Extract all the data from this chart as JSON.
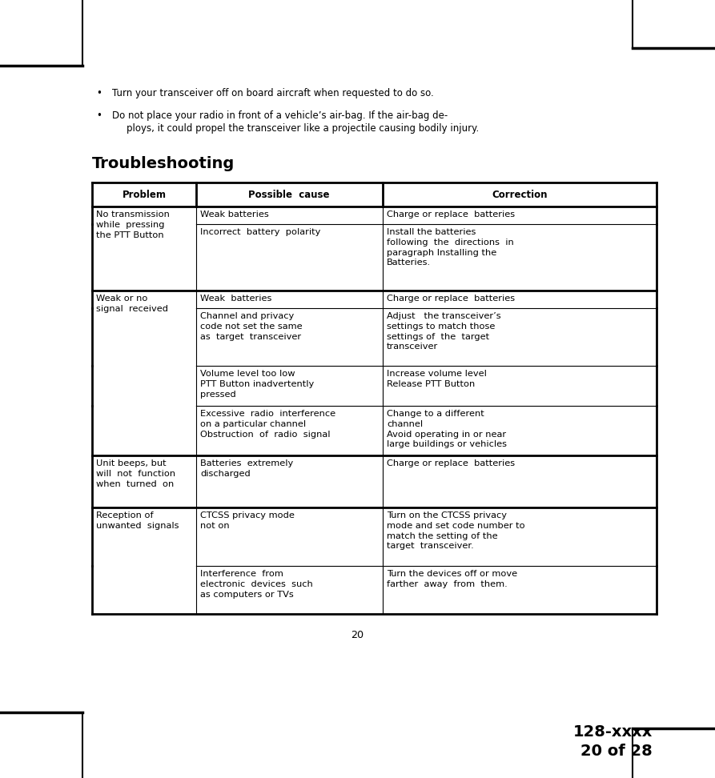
{
  "page_width": 8.93,
  "page_height": 9.72,
  "bg_color": "#ffffff",
  "bullet1": "Turn your transceiver off on board aircraft when requested to do so.",
  "bullet2a": "Do not place your radio in front of a vehicle’s air-bag. If the air-bag de-",
  "bullet2b": "ploys, it could propel the transceiver like a projectile causing bodily injury.",
  "section_title": "Troubleshooting",
  "header_row": [
    "Problem",
    "Possible  cause",
    "Correction"
  ],
  "page_number": "20",
  "footer_text": "128-xxxx\n20 of 28",
  "font_size_body": 8.2,
  "font_size_header": 8.5,
  "font_size_title": 14.0,
  "font_size_footer": 14.0,
  "font_size_bullet": 8.5
}
